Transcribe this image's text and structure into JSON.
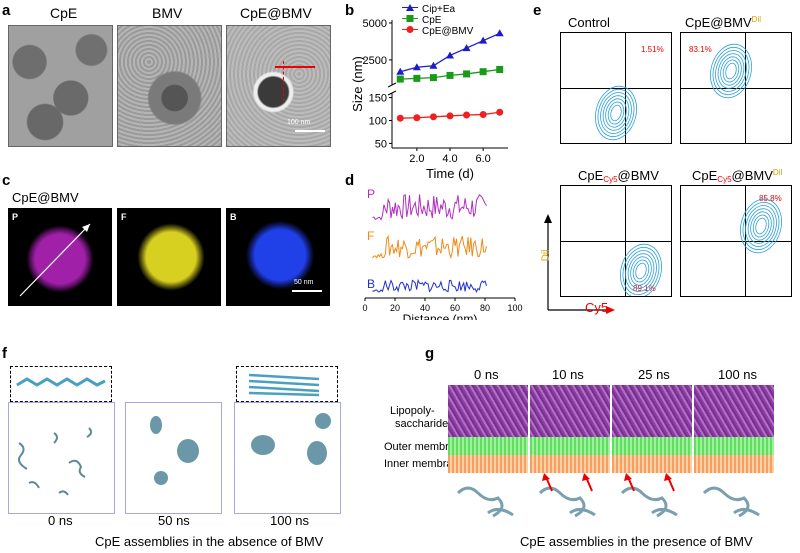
{
  "panels": {
    "a": {
      "label": "a",
      "titles": [
        "CpE",
        "BMV",
        "CpE@BMV"
      ],
      "scale_bar": "100 nm"
    },
    "b": {
      "label": "b"
    },
    "c": {
      "label": "c",
      "title": "CpE@BMV",
      "channels": [
        "P",
        "F",
        "B"
      ],
      "scale_bar": "50 nm"
    },
    "d": {
      "label": "d"
    },
    "e": {
      "label": "e",
      "plots": [
        {
          "title": "Control",
          "pct": "1.51%"
        },
        {
          "title": "CpE@BMV",
          "title_sup": "Dil",
          "pct": "83.1%"
        },
        {
          "title": "CpE",
          "title_sub": "Cy5",
          "title_tail": "@BMV",
          "pct": "89.1%"
        },
        {
          "title": "CpE",
          "title_sub": "Cy5",
          "title_tail": "@BMV",
          "title_sup": "Dil",
          "pct": "85.8%"
        }
      ],
      "y_axis": "Dil",
      "x_axis": "Cy5"
    },
    "f": {
      "label": "f",
      "times": [
        "0  ns",
        "50 ns",
        "100 ns"
      ],
      "caption": "CpE assemblies in the absence of BMV"
    },
    "g": {
      "label": "g",
      "times": [
        "0 ns",
        "10 ns",
        "25 ns",
        "100 ns"
      ],
      "layers": [
        "Lipopoly-",
        "saccharide",
        "Outer membrane",
        "Inner membrane"
      ],
      "caption": "CpE assemblies in the presence of BMV"
    }
  },
  "chart_data": [
    {
      "type": "line",
      "panel": "b",
      "xlabel": "Time (d)",
      "ylabel": "Size (nm)",
      "x_ticks": [
        "2.0",
        "4.0",
        "6.0"
      ],
      "y_ticks_upper": [
        "2500",
        "5000"
      ],
      "y_ticks_lower": [
        "50",
        "100",
        "150"
      ],
      "axis_break": true,
      "x": [
        1,
        2,
        3,
        4,
        5,
        6,
        7
      ],
      "series": [
        {
          "name": "Cip+Ea",
          "color": "#1c1ccc",
          "marker": "triangle",
          "values": [
            1700,
            2000,
            2100,
            2800,
            3300,
            3800,
            4300
          ]
        },
        {
          "name": "CpE",
          "color": "#1a9a1a",
          "marker": "square",
          "values": [
            1200,
            1250,
            1300,
            1450,
            1550,
            1700,
            1850
          ]
        },
        {
          "name": "CpE@BMV",
          "color": "#ee2020",
          "marker": "circle",
          "values": [
            105,
            106,
            108,
            110,
            112,
            113,
            118
          ]
        }
      ]
    },
    {
      "type": "line",
      "panel": "d",
      "xlabel": "Distance (nm)",
      "x_ticks": [
        "0",
        "20",
        "40",
        "60",
        "80",
        "100"
      ],
      "xlim": [
        0,
        100
      ],
      "series": [
        {
          "name": "P",
          "color": "#b030c0"
        },
        {
          "name": "F",
          "color": "#f08a18"
        },
        {
          "name": "B",
          "color": "#2030d0"
        }
      ]
    }
  ]
}
